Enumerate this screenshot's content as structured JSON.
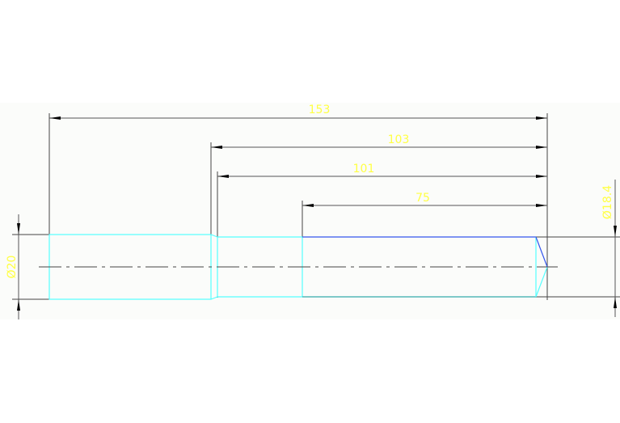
{
  "drawing": {
    "dimensions": {
      "overall_length": "153",
      "length_103": "103",
      "length_101": "101",
      "length_75": "75",
      "diameter_large": "Ø20",
      "diameter_small": "Ø18.4"
    },
    "colors": {
      "part_outline": "#55ffff",
      "dimension_text": "#ffff44",
      "dimension_lines": "#444444",
      "highlight_edge": "#3355ee"
    }
  }
}
